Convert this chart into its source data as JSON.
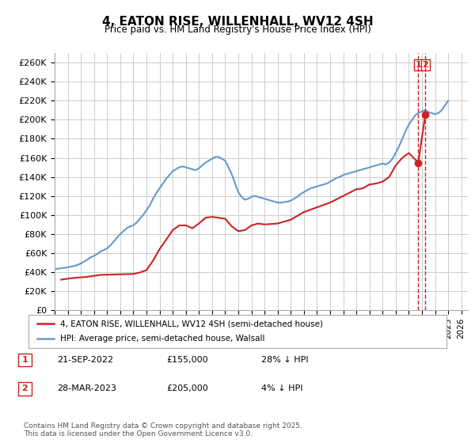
{
  "title": "4, EATON RISE, WILLENHALL, WV12 4SH",
  "subtitle": "Price paid vs. HM Land Registry's House Price Index (HPI)",
  "xlabel": "",
  "ylabel": "",
  "ylim": [
    0,
    270000
  ],
  "xlim_start": 1995.0,
  "xlim_end": 2026.5,
  "ytick_values": [
    0,
    20000,
    40000,
    60000,
    80000,
    100000,
    120000,
    140000,
    160000,
    180000,
    200000,
    220000,
    240000,
    260000
  ],
  "ytick_labels": [
    "£0",
    "£20K",
    "£40K",
    "£60K",
    "£80K",
    "£100K",
    "£120K",
    "£140K",
    "£160K",
    "£180K",
    "£200K",
    "£220K",
    "£240K",
    "£260K"
  ],
  "hpi_color": "#6699cc",
  "price_color": "#cc2222",
  "dashed_color": "#cc2222",
  "legend1_label": "4, EATON RISE, WILLENHALL, WV12 4SH (semi-detached house)",
  "legend2_label": "HPI: Average price, semi-detached house, Walsall",
  "transaction1_date": "21-SEP-2022",
  "transaction1_price": "£155,000",
  "transaction1_hpi": "28% ↓ HPI",
  "transaction2_date": "28-MAR-2023",
  "transaction2_price": "£205,000",
  "transaction2_hpi": "4% ↓ HPI",
  "footer": "Contains HM Land Registry data © Crown copyright and database right 2025.\nThis data is licensed under the Open Government Licence v3.0.",
  "marker1_x": 2022.72,
  "marker1_y": 155000,
  "marker2_x": 2023.25,
  "marker2_y": 205000,
  "bg_color": "#ffffff",
  "grid_color": "#cccccc",
  "hpi_data_x": [
    1995.0,
    1995.25,
    1995.5,
    1995.75,
    1996.0,
    1996.25,
    1996.5,
    1996.75,
    1997.0,
    1997.25,
    1997.5,
    1997.75,
    1998.0,
    1998.25,
    1998.5,
    1998.75,
    1999.0,
    1999.25,
    1999.5,
    1999.75,
    2000.0,
    2000.25,
    2000.5,
    2000.75,
    2001.0,
    2001.25,
    2001.5,
    2001.75,
    2002.0,
    2002.25,
    2002.5,
    2002.75,
    2003.0,
    2003.25,
    2003.5,
    2003.75,
    2004.0,
    2004.25,
    2004.5,
    2004.75,
    2005.0,
    2005.25,
    2005.5,
    2005.75,
    2006.0,
    2006.25,
    2006.5,
    2006.75,
    2007.0,
    2007.25,
    2007.5,
    2007.75,
    2008.0,
    2008.25,
    2008.5,
    2008.75,
    2009.0,
    2009.25,
    2009.5,
    2009.75,
    2010.0,
    2010.25,
    2010.5,
    2010.75,
    2011.0,
    2011.25,
    2011.5,
    2011.75,
    2012.0,
    2012.25,
    2012.5,
    2012.75,
    2013.0,
    2013.25,
    2013.5,
    2013.75,
    2014.0,
    2014.25,
    2014.5,
    2014.75,
    2015.0,
    2015.25,
    2015.5,
    2015.75,
    2016.0,
    2016.25,
    2016.5,
    2016.75,
    2017.0,
    2017.25,
    2017.5,
    2017.75,
    2018.0,
    2018.25,
    2018.5,
    2018.75,
    2019.0,
    2019.25,
    2019.5,
    2019.75,
    2020.0,
    2020.25,
    2020.5,
    2020.75,
    2021.0,
    2021.25,
    2021.5,
    2021.75,
    2022.0,
    2022.25,
    2022.5,
    2022.75,
    2023.0,
    2023.25,
    2023.5,
    2023.75,
    2024.0,
    2024.25,
    2024.5,
    2024.75,
    2025.0
  ],
  "hpi_data_y": [
    43000,
    43500,
    44000,
    44500,
    45000,
    45800,
    46500,
    47500,
    49000,
    51000,
    53000,
    55500,
    57000,
    59000,
    61500,
    63000,
    65000,
    68000,
    72000,
    76000,
    80000,
    83000,
    86000,
    88000,
    89000,
    92000,
    96000,
    100000,
    105000,
    110000,
    117000,
    123000,
    128000,
    133000,
    138000,
    142000,
    146000,
    148000,
    150000,
    151000,
    150000,
    149000,
    148000,
    147000,
    149000,
    152000,
    155000,
    157000,
    159000,
    161000,
    161000,
    159000,
    157000,
    150000,
    143000,
    133000,
    124000,
    119000,
    116000,
    117000,
    119000,
    120000,
    119000,
    118000,
    117000,
    116000,
    115000,
    114000,
    113000,
    113000,
    113500,
    114000,
    115000,
    117000,
    119000,
    122000,
    124000,
    126000,
    128000,
    129000,
    130000,
    131000,
    132000,
    133000,
    135000,
    137000,
    139000,
    140000,
    142000,
    143000,
    144000,
    145000,
    146000,
    147000,
    148000,
    149000,
    150000,
    151000,
    152000,
    153000,
    154000,
    153000,
    155000,
    159000,
    165000,
    172000,
    180000,
    188000,
    195000,
    200000,
    205000,
    207000,
    209000,
    210000,
    208000,
    207000,
    206000,
    207000,
    210000,
    215000,
    220000
  ],
  "price_data_x": [
    1995.5,
    1996.25,
    1997.5,
    1998.0,
    1998.5,
    2001.0,
    2001.5,
    2002.0,
    2002.5,
    2003.0,
    2003.5,
    2004.0,
    2004.5,
    2005.0,
    2005.5,
    2006.0,
    2006.5,
    2007.0,
    2007.5,
    2008.0,
    2008.5,
    2009.0,
    2009.5,
    2010.0,
    2010.5,
    2011.0,
    2012.0,
    2013.0,
    2014.0,
    2015.0,
    2016.0,
    2017.0,
    2018.0,
    2018.5,
    2019.0,
    2019.5,
    2020.0,
    2020.5,
    2021.0,
    2021.5,
    2022.0,
    2022.72,
    2023.25
  ],
  "price_data_y": [
    32000,
    33500,
    35000,
    36000,
    37000,
    38000,
    39500,
    42000,
    52000,
    64000,
    74000,
    84000,
    89000,
    89000,
    86000,
    91000,
    97000,
    98000,
    97000,
    96000,
    88000,
    83000,
    84000,
    89000,
    91000,
    90000,
    91000,
    95000,
    103000,
    108000,
    113000,
    120000,
    127000,
    128000,
    132000,
    133000,
    135000,
    140000,
    152000,
    160000,
    165000,
    155000,
    205000
  ]
}
